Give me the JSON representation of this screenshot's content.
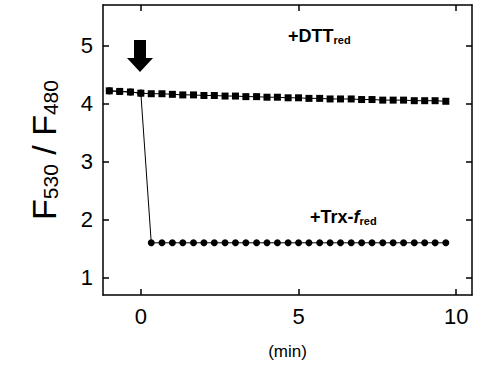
{
  "chart_data": {
    "type": "line",
    "y_label": [
      {
        "text": "F"
      },
      {
        "text": "530",
        "style": "sub"
      },
      {
        "text": " / F"
      },
      {
        "text": "480",
        "style": "sub"
      }
    ],
    "x_label": "(min)",
    "x": [
      -1,
      -0.67,
      -0.33,
      0,
      0.33,
      0.67,
      1,
      1.33,
      1.67,
      2,
      2.33,
      2.67,
      3,
      3.33,
      3.67,
      4,
      4.33,
      4.67,
      5,
      5.33,
      5.67,
      6,
      6.33,
      6.67,
      7,
      7.33,
      7.67,
      8,
      8.33,
      8.67,
      9,
      9.33,
      9.67
    ],
    "xlim": [
      -1.2,
      10.5
    ],
    "xticks": [
      0,
      5,
      10
    ],
    "ylim": [
      0.7,
      5.7
    ],
    "yticks": [
      1,
      2,
      3,
      4,
      5
    ],
    "grid": false,
    "series": [
      {
        "label": [
          {
            "text": "+DTT"
          },
          {
            "text": "red",
            "style": "sub"
          }
        ],
        "color": "#000000",
        "marker": "square",
        "values": [
          4.22,
          4.21,
          4.2,
          4.18,
          4.17,
          4.17,
          4.16,
          4.15,
          4.15,
          4.14,
          4.14,
          4.13,
          4.13,
          4.12,
          4.12,
          4.11,
          4.11,
          4.1,
          4.1,
          4.09,
          4.09,
          4.08,
          4.08,
          4.08,
          4.07,
          4.07,
          4.06,
          4.06,
          4.06,
          4.05,
          4.05,
          4.05,
          4.04
        ]
      },
      {
        "label": [
          {
            "text": "+Trx-"
          },
          {
            "text": "f",
            "style": "italic"
          },
          {
            "text": "red",
            "style": "sub"
          }
        ],
        "color": "#000000",
        "marker": "circle",
        "values": [
          4.22,
          4.21,
          4.2,
          4.18,
          1.6,
          1.6,
          1.6,
          1.6,
          1.6,
          1.6,
          1.6,
          1.6,
          1.6,
          1.6,
          1.6,
          1.6,
          1.6,
          1.6,
          1.6,
          1.6,
          1.6,
          1.6,
          1.6,
          1.6,
          1.6,
          1.6,
          1.6,
          1.6,
          1.6,
          1.6,
          1.6,
          1.6,
          1.6
        ]
      }
    ]
  }
}
